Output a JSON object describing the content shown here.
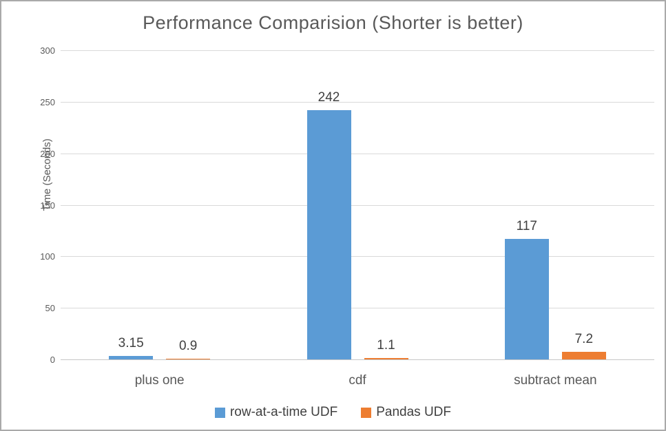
{
  "chart_data": {
    "type": "bar",
    "title": "Performance Comparision (Shorter is better)",
    "ylabel": "Time (Seconds)",
    "xlabel": "",
    "categories": [
      "plus one",
      "cdf",
      "subtract mean"
    ],
    "series": [
      {
        "name": "row-at-a-time UDF",
        "color": "#5B9BD5",
        "values": [
          3.15,
          242,
          117
        ],
        "data_labels": [
          "3.15",
          "242",
          "117"
        ]
      },
      {
        "name": "Pandas UDF",
        "color": "#ED7D31",
        "values": [
          0.9,
          1.1,
          7.2
        ],
        "data_labels": [
          "0.9",
          "1.1",
          "7.2"
        ]
      }
    ],
    "ylim": [
      0,
      300
    ],
    "yticks": [
      0,
      50,
      100,
      150,
      200,
      250,
      300
    ],
    "grid": true,
    "legend_position": "bottom"
  },
  "colors": {
    "title_text": "#595959",
    "axis_text": "#595959",
    "data_label_text": "#404040",
    "gridline": "#d9d9d9",
    "frame_border": "#a9a9a9",
    "background": "#ffffff"
  }
}
